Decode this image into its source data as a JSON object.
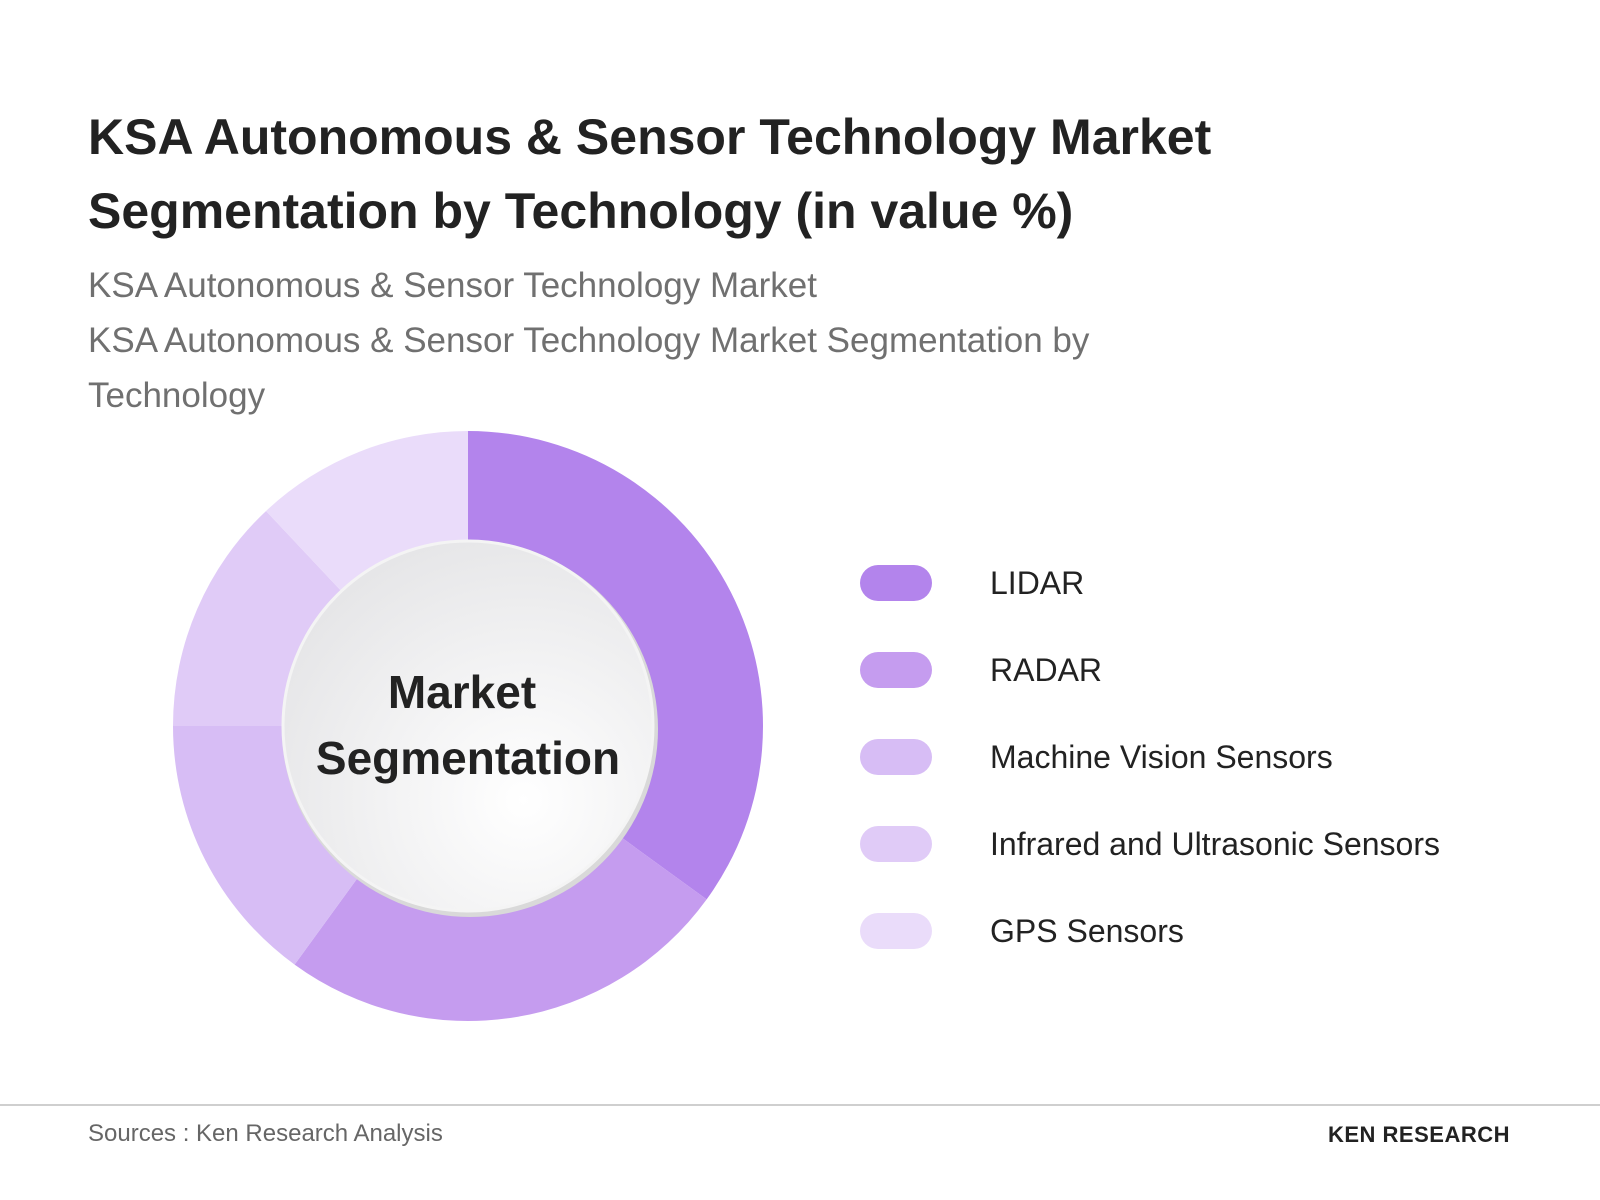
{
  "chart_data": {
    "type": "donut",
    "title": "KSA Autonomous & Sensor Technology Market Segmentation by Technology (in value %)",
    "subtitle": [
      "KSA Autonomous & Sensor Technology Market",
      "KSA Autonomous & Sensor Technology Market Segmentation by Technology"
    ],
    "center_text": [
      "Market",
      "Segmentation"
    ],
    "categories": [
      "LIDAR",
      "RADAR",
      "Machine Vision Sensors",
      "Infrared and Ultrasonic Sensors",
      "GPS Sensors"
    ],
    "values": [
      35,
      25,
      15,
      13,
      12
    ],
    "colors": [
      "#b384ec",
      "#c59cef",
      "#d7bdf5",
      "#e0cbf7",
      "#eadcfa"
    ]
  },
  "footer": {
    "source": "Sources : Ken Research Analysis",
    "logo": "KEN RESEARCH"
  }
}
